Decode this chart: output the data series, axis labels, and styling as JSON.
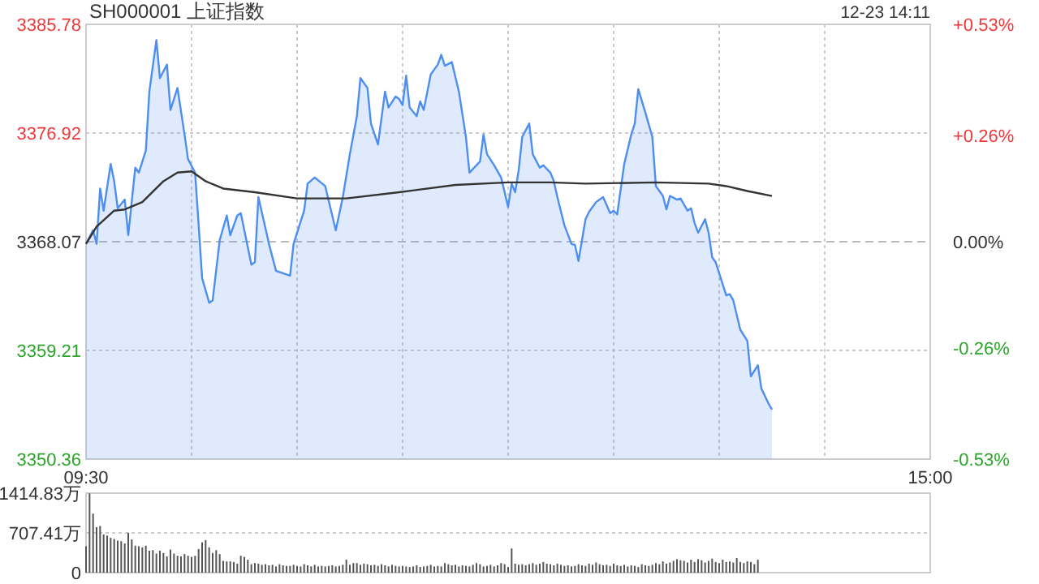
{
  "chart_data": [
    {
      "type": "area",
      "title": "SH000001 上证指数",
      "annotations": [
        "12-23 14:11"
      ],
      "categories": [
        "09:30",
        null,
        null,
        null,
        null,
        null,
        null,
        null,
        null,
        null,
        null,
        null,
        null,
        null,
        null,
        null,
        null,
        null,
        null,
        null,
        null,
        null,
        null,
        null,
        null,
        null,
        null,
        null,
        null,
        null,
        null,
        null,
        null,
        null,
        null,
        null,
        null,
        null,
        null,
        null,
        null,
        null,
        null,
        null,
        null,
        null,
        null,
        null,
        null,
        null,
        null,
        null,
        null,
        null,
        null,
        null,
        null,
        null,
        null,
        null,
        null,
        null,
        null,
        null,
        null,
        null,
        null,
        null,
        null,
        null,
        null,
        null,
        null,
        null,
        null,
        null,
        null,
        null,
        null,
        null,
        null,
        null,
        null,
        null,
        null,
        null,
        null,
        null,
        null,
        null,
        null,
        null,
        null,
        null,
        null,
        null,
        null,
        null,
        null,
        null,
        null,
        null,
        null,
        null,
        null,
        null,
        null,
        null,
        null,
        null,
        null,
        null,
        null,
        null,
        null,
        null,
        null,
        null,
        null,
        null,
        null,
        null,
        null,
        null,
        null,
        null,
        null,
        null,
        null,
        null,
        null,
        null,
        null,
        null,
        null,
        null,
        null,
        null,
        null,
        null,
        null,
        null,
        null,
        null,
        null,
        null,
        null,
        null,
        null,
        null,
        null,
        null,
        null,
        null,
        null,
        null,
        null,
        null,
        null,
        null,
        null,
        null,
        null,
        null,
        null,
        null,
        null,
        null,
        null,
        null,
        null,
        null,
        null,
        null,
        null,
        null,
        null,
        null,
        null,
        null,
        null,
        null,
        null,
        null,
        null,
        null,
        null,
        null,
        null,
        null,
        null,
        null,
        null,
        null,
        null,
        null,
        null,
        null,
        null,
        null,
        null,
        null,
        null,
        null,
        null,
        null,
        null,
        null,
        null,
        null,
        null,
        null,
        null,
        null,
        null,
        null,
        null,
        null,
        null,
        null,
        null,
        null,
        null,
        null,
        null,
        null,
        null,
        null,
        null,
        null,
        null,
        null,
        null,
        null,
        null,
        null,
        null,
        null,
        null,
        null,
        "15:00"
      ],
      "ylim": [
        3350.36,
        3385.78
      ],
      "yticks": [
        3350.36,
        3359.21,
        3368.07,
        3376.92,
        3385.78
      ],
      "y2lim": [
        -0.53,
        0.53
      ],
      "y2ticks": [
        {
          "value": -0.53,
          "label": "-0.53%"
        },
        {
          "value": -0.26,
          "label": "-0.26%"
        },
        {
          "value": 0,
          "label": "0.00%"
        },
        {
          "value": 0.26,
          "label": "+0.26%"
        },
        {
          "value": 0.53,
          "label": "+0.53%"
        }
      ],
      "grid": true,
      "ref_lines": [
        {
          "axis": "y",
          "value": 3368.07,
          "line_style": "dashed",
          "color": "#bbbbbb"
        }
      ],
      "series": [
        {
          "color": "#4d8ef0",
          "values": [
            3367.9,
            null,
            3369.0,
            3367.9,
            3372.4,
            3370.6,
            null,
            3374.4,
            3373.0,
            3370.8,
            null,
            3371.5,
            3368.6,
            null,
            3374.1,
            3373.7,
            null,
            3375.5,
            3380.3,
            null,
            3384.5,
            3381.4,
            null,
            3382.5,
            3378.8,
            null,
            3380.6,
            null,
            3376.8,
            3374.8,
            null,
            3373.7,
            3369.5,
            3365.1,
            null,
            3363.1,
            3363.3,
            null,
            3368.2,
            null,
            3370.2,
            3368.6,
            null,
            3370.2,
            3370.4,
            null,
            null,
            3366.2,
            3366.4,
            3371.7,
            null,
            null,
            3367.9,
            null,
            3365.7,
            null,
            null,
            null,
            3365.3,
            3367.9,
            null,
            null,
            3370.6,
            3372.8,
            null,
            3373.3,
            null,
            null,
            3372.6,
            null,
            null,
            3369.0,
            null,
            3371.7,
            null,
            3375.2,
            null,
            3378.3,
            3381.4,
            null,
            3380.6,
            3377.7,
            null,
            3376.0,
            null,
            3380.3,
            3379.0,
            null,
            3379.9,
            3379.7,
            3379.2,
            3381.6,
            3379.0,
            null,
            3378.3,
            3379.5,
            3378.8,
            null,
            3381.7,
            null,
            3382.5,
            3383.3,
            3382.4,
            null,
            3382.7,
            null,
            3380.3,
            null,
            3376.6,
            3373.7,
            null,
            null,
            3374.6,
            3376.8,
            3375.2,
            null,
            3374.3,
            null,
            3373.3,
            null,
            3370.9,
            3372.8,
            3372.1,
            3373.9,
            3376.6,
            null,
            3377.7,
            3375.2,
            null,
            3374.1,
            3374.3,
            null,
            3373.7,
            3373.0,
            3371.7,
            null,
            3369.4,
            null,
            3367.9,
            3367.8,
            3366.5,
            null,
            3369.9,
            3370.5,
            null,
            3371.3,
            null,
            3371.7,
            null,
            3370.4,
            3370.6,
            3370.3,
            null,
            3374.4,
            null,
            3376.8,
            3377.7,
            3380.5,
            null,
            3378.6,
            null,
            3376.6,
            3372.6,
            null,
            3371.8,
            3370.7,
            3371.8,
            null,
            3371.5,
            3371.6,
            null,
            3370.6,
            3370.8,
            3369.6,
            3368.8,
            null,
            3369.9,
            3368.8,
            3366.8,
            3366.4,
            null,
            null,
            3363.7,
            3363.8,
            3363.3,
            null,
            3360.9,
            null,
            3360.0,
            3357.1,
            null,
            3358.0,
            3356.1,
            null,
            3354.9,
            3354.4,
            null,
            null,
            null,
            null,
            null,
            null,
            null,
            null,
            null,
            null,
            null,
            null,
            null,
            null,
            null,
            null,
            null,
            null,
            null,
            null,
            null,
            null,
            null,
            null,
            null,
            null,
            null,
            null,
            null,
            null,
            null,
            null,
            null,
            null,
            null,
            null,
            null,
            null,
            null,
            null,
            null,
            null,
            null,
            null,
            null
          ]
        },
        {
          "type": "line",
          "color": "#333333",
          "values": [
            3367.9,
            null,
            null,
            3369.3,
            null,
            null,
            null,
            null,
            3370.6,
            null,
            null,
            3370.7,
            null,
            null,
            null,
            null,
            3371.3,
            null,
            null,
            null,
            null,
            null,
            3373.0,
            null,
            null,
            null,
            3373.7,
            null,
            null,
            null,
            3373.8,
            null,
            null,
            null,
            3373.0,
            null,
            null,
            null,
            null,
            3372.4,
            null,
            null,
            null,
            null,
            null,
            null,
            null,
            null,
            3372.1,
            null,
            null,
            null,
            null,
            null,
            null,
            null,
            null,
            null,
            null,
            null,
            3371.6,
            null,
            null,
            null,
            null,
            null,
            null,
            null,
            null,
            null,
            null,
            null,
            null,
            null,
            3371.6,
            null,
            null,
            null,
            null,
            null,
            null,
            null,
            null,
            null,
            null,
            null,
            null,
            null,
            null,
            3372.1,
            null,
            null,
            null,
            null,
            null,
            null,
            null,
            null,
            null,
            null,
            null,
            null,
            null,
            null,
            null,
            3372.7,
            null,
            null,
            null,
            null,
            null,
            null,
            null,
            null,
            null,
            null,
            null,
            null,
            null,
            null,
            3372.9,
            null,
            null,
            null,
            null,
            null,
            null,
            null,
            null,
            null,
            null,
            null,
            3372.9,
            null,
            null,
            null,
            null,
            null,
            null,
            null,
            null,
            null,
            3372.8,
            null,
            null,
            null,
            null,
            null,
            null,
            null,
            null,
            null,
            null,
            null,
            null,
            null,
            null,
            null,
            null,
            null,
            null,
            null,
            3372.9,
            null,
            null,
            null,
            null,
            null,
            null,
            null,
            null,
            null,
            null,
            null,
            null,
            null,
            null,
            3372.8,
            null,
            null,
            null,
            null,
            3372.6,
            null,
            null,
            null,
            null,
            null,
            3372.2,
            null,
            null,
            null,
            null,
            null,
            null,
            3371.8,
            null,
            null,
            null,
            null,
            null,
            null,
            null,
            null,
            null,
            null,
            null,
            null,
            null,
            null,
            null,
            null,
            null,
            null,
            null,
            null,
            null,
            null,
            null,
            null,
            null,
            null,
            null,
            null,
            null,
            null,
            null,
            null,
            null,
            null,
            null,
            null,
            null,
            null,
            null,
            null,
            null,
            null,
            null,
            null,
            null
          ]
        }
      ]
    },
    {
      "type": "bar",
      "color": "#555555",
      "categories": [
        null,
        null,
        null,
        null,
        null,
        null,
        null,
        null,
        null,
        null,
        null,
        null,
        null,
        null,
        null,
        null,
        null,
        null,
        null,
        null,
        null,
        null,
        null,
        null,
        null,
        null,
        null,
        null,
        null,
        null,
        null,
        null,
        null,
        null,
        null,
        null,
        null,
        null,
        null,
        null,
        null,
        null,
        null,
        null,
        null,
        null,
        null,
        null,
        null,
        null,
        null,
        null,
        null,
        null,
        null,
        null,
        null,
        null,
        null,
        null,
        null,
        null,
        null,
        null,
        null,
        null,
        null,
        null,
        null,
        null,
        null,
        null,
        null,
        null,
        null,
        null,
        null,
        null,
        null,
        null,
        null,
        null,
        null,
        null,
        null,
        null,
        null,
        null,
        null,
        null,
        null,
        null,
        null,
        null,
        null,
        null,
        null,
        null,
        null,
        null,
        null,
        null,
        null,
        null,
        null,
        null,
        null,
        null,
        null,
        null,
        null,
        null,
        null,
        null,
        null,
        null,
        null,
        null,
        null,
        null,
        null,
        null,
        null,
        null,
        null,
        null,
        null,
        null,
        null,
        null,
        null,
        null,
        null,
        null,
        null,
        null,
        null,
        null,
        null,
        null,
        null,
        null,
        null,
        null,
        null,
        null,
        null,
        null,
        null,
        null,
        null,
        null,
        null,
        null,
        null,
        null,
        null,
        null,
        null,
        null,
        null,
        null,
        null,
        null,
        null,
        null,
        null,
        null,
        null,
        null,
        null,
        null,
        null,
        null,
        null,
        null,
        null,
        null,
        null,
        null,
        null,
        null,
        null,
        null,
        null,
        null,
        null,
        null,
        null,
        null,
        null,
        null,
        null,
        null,
        null,
        null,
        null,
        null,
        null,
        null,
        null,
        null,
        null,
        null,
        null,
        null,
        null,
        null,
        null,
        null,
        null,
        null,
        null,
        null,
        null,
        null,
        null,
        null,
        null,
        null,
        null,
        null,
        null,
        null,
        null,
        null,
        null,
        null,
        null,
        null,
        null,
        null,
        null,
        null,
        null,
        null,
        null,
        null,
        null,
        null,
        null
      ],
      "ylim": [
        0,
        1414.83
      ],
      "yticks": [
        0,
        {
          "value": 707.41,
          "label": "707.41万"
        },
        {
          "value": 1414.83,
          "label": "1414.83万"
        }
      ],
      "grid": "y",
      "tick_labels": "y",
      "values": [
        470,
        1410,
        1050,
        810,
        830,
        680,
        660,
        620,
        600,
        570,
        560,
        520,
        710,
        590,
        480,
        470,
        450,
        480,
        390,
        400,
        340,
        390,
        350,
        290,
        410,
        340,
        300,
        290,
        330,
        300,
        280,
        300,
        420,
        540,
        580,
        450,
        350,
        400,
        330,
        210,
        200,
        200,
        190,
        160,
        300,
        280,
        230,
        150,
        170,
        160,
        140,
        150,
        130,
        140,
        110,
        150,
        130,
        120,
        120,
        140,
        120,
        110,
        150,
        130,
        110,
        140,
        110,
        120,
        110,
        120,
        130,
        110,
        120,
        140,
        230,
        140,
        170,
        170,
        140,
        160,
        150,
        130,
        140,
        120,
        150,
        130,
        110,
        140,
        120,
        110,
        120,
        110,
        100,
        110,
        130,
        100,
        110,
        120,
        140,
        110,
        120,
        110,
        170,
        150,
        130,
        140,
        110,
        130,
        120,
        110,
        140,
        170,
        150,
        110,
        120,
        140,
        110,
        130,
        170,
        150,
        100,
        430,
        160,
        140,
        150,
        130,
        150,
        170,
        140,
        160,
        190,
        160,
        150,
        130,
        160,
        140,
        120,
        130,
        110,
        120,
        150,
        130,
        120,
        160,
        140,
        180,
        150,
        130,
        140,
        120,
        160,
        130,
        120,
        140,
        110,
        130,
        120,
        100,
        150,
        130,
        120,
        140,
        170,
        150,
        200,
        160,
        180,
        210,
        240,
        220,
        210,
        180,
        230,
        190,
        240,
        220,
        180,
        210,
        250,
        190,
        170,
        230,
        190,
        200,
        180,
        260,
        190,
        170,
        200,
        190,
        150,
        230,
        null,
        null,
        null,
        null,
        null,
        null,
        null,
        null,
        null,
        null,
        null,
        null,
        null,
        null,
        null,
        null,
        null,
        null,
        null,
        null,
        null,
        null,
        null,
        null,
        null,
        null,
        null,
        null,
        null,
        null,
        null,
        null,
        null,
        null,
        null,
        null,
        null,
        null,
        null,
        null,
        null,
        null,
        null,
        null,
        null,
        null,
        null,
        null,
        null
      ]
    }
  ]
}
